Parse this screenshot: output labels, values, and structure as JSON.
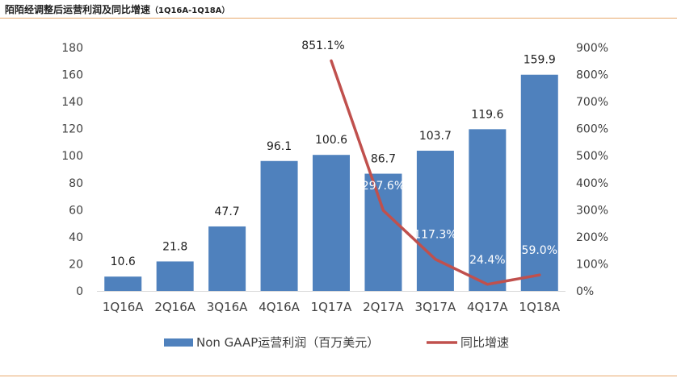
{
  "header": {
    "title": "陌陌经调整后运营利润及同比增速",
    "subtitle": "（1Q16A-1Q18A）"
  },
  "colors": {
    "bar": "#4f81bd",
    "line": "#c0504d",
    "axis_text": "#404040",
    "rule": "#e8a86c"
  },
  "chart_data": {
    "type": "bar",
    "title": "陌陌经调整后运营利润及同比增速（1Q16A-1Q18A）",
    "categories": [
      "1Q16A",
      "2Q16A",
      "3Q16A",
      "4Q16A",
      "1Q17A",
      "2Q17A",
      "3Q17A",
      "4Q17A",
      "1Q18A"
    ],
    "series": [
      {
        "name": "Non GAAP运营利润（百万美元）",
        "type": "bar",
        "axis": "left",
        "values": [
          10.6,
          21.8,
          47.7,
          96.1,
          100.6,
          86.7,
          103.7,
          119.6,
          159.9
        ],
        "labels": [
          "10.6",
          "21.8",
          "47.7",
          "96.1",
          "100.6",
          "86.7",
          "103.7",
          "119.6",
          "159.9"
        ]
      },
      {
        "name": "同比增速",
        "type": "line",
        "axis": "right",
        "values": [
          null,
          null,
          null,
          null,
          851.1,
          297.6,
          117.3,
          24.4,
          59.0
        ],
        "labels": [
          "",
          "",
          "",
          "",
          "851.1%",
          "297.6%",
          "117.3%",
          "24.4%",
          "59.0%"
        ]
      }
    ],
    "y_left": {
      "min": 0,
      "max": 180,
      "step": 20,
      "ticks": [
        "0",
        "20",
        "40",
        "60",
        "80",
        "100",
        "120",
        "140",
        "160",
        "180"
      ]
    },
    "y_right": {
      "min": 0,
      "max": 900,
      "step": 100,
      "ticks": [
        "0%",
        "100%",
        "200%",
        "300%",
        "400%",
        "500%",
        "600%",
        "700%",
        "800%",
        "900%"
      ]
    },
    "grid": false,
    "legend_position": "bottom"
  }
}
